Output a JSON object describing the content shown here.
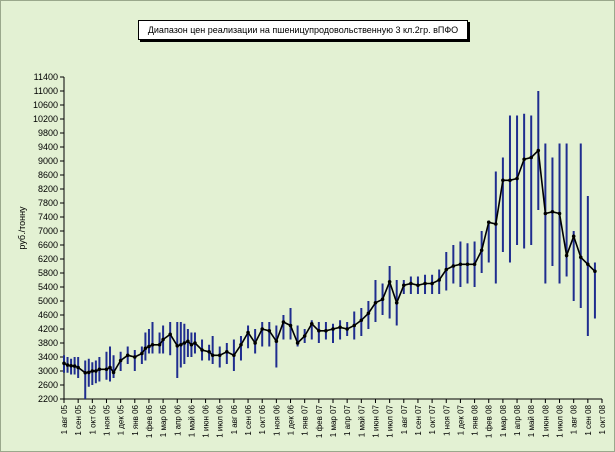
{
  "chart_data": {
    "type": "line",
    "title": "Диапазон цен реализации на пшеницупродовольственную 3 кл.2гр. вПФО",
    "ylabel": "руб./тонну",
    "xlabel": "",
    "ylim": [
      2200,
      11400
    ],
    "y_ticks": [
      2200,
      2600,
      3000,
      3400,
      3800,
      4200,
      4600,
      5000,
      5400,
      5800,
      6200,
      6600,
      7000,
      7400,
      7800,
      8200,
      8600,
      9000,
      9400,
      9800,
      10200,
      10600,
      11000,
      11400
    ],
    "x_tick_labels": [
      "1 авг 05",
      "1 сен 05",
      "1 окт 05",
      "1 ноя 05",
      "1 дек 05",
      "1 янв 06",
      "1 фев 06",
      "1 мар 06",
      "1 апр 06",
      "1 май 06",
      "1 июн 06",
      "1 июл 06",
      "1 авг 06",
      "1 сен 06",
      "1 окт 06",
      "1 ноя 06",
      "1 дек 06",
      "1 янв 07",
      "1 фев 07",
      "1 мар 07",
      "1 апр 07",
      "1 май 07",
      "1 июн 07",
      "1 июл 07",
      "1 авг 07",
      "1 сен 07",
      "1 окт 07",
      "1 ноя 07",
      "1 дек 07",
      "1 янв 08",
      "1 фев 08",
      "1 мар 08",
      "1 апр 08",
      "1 май 08",
      "1 июн 08",
      "1 июл 08",
      "1 авг 08",
      "1 сен 08",
      "1 окт 08"
    ],
    "grid": false,
    "legend": "none",
    "line_color": "#000000",
    "range_color": "#1f2d8f",
    "points": [
      {
        "x": 0.0,
        "y": 3220,
        "low": 2950,
        "high": 3450
      },
      {
        "x": 0.25,
        "y": 3170,
        "low": 2950,
        "high": 3400
      },
      {
        "x": 0.5,
        "y": 3150,
        "low": 2900,
        "high": 3350
      },
      {
        "x": 0.75,
        "y": 3140,
        "low": 2900,
        "high": 3400
      },
      {
        "x": 1.0,
        "y": 3100,
        "low": 2800,
        "high": 3400
      },
      {
        "x": 1.5,
        "y": 2950,
        "low": 2200,
        "high": 3300
      },
      {
        "x": 1.75,
        "y": 2960,
        "low": 2550,
        "high": 3350
      },
      {
        "x": 2.0,
        "y": 3000,
        "low": 2600,
        "high": 3250
      },
      {
        "x": 2.25,
        "y": 3000,
        "low": 2650,
        "high": 3300
      },
      {
        "x": 2.5,
        "y": 3050,
        "low": 2700,
        "high": 3400
      },
      {
        "x": 3.0,
        "y": 3050,
        "low": 2750,
        "high": 3550
      },
      {
        "x": 3.25,
        "y": 3100,
        "low": 2700,
        "high": 3700
      },
      {
        "x": 3.5,
        "y": 2960,
        "low": 2800,
        "high": 3450
      },
      {
        "x": 4.0,
        "y": 3300,
        "low": 3000,
        "high": 3550
      },
      {
        "x": 4.5,
        "y": 3450,
        "low": 3200,
        "high": 3700
      },
      {
        "x": 5.0,
        "y": 3400,
        "low": 3000,
        "high": 3600
      },
      {
        "x": 5.5,
        "y": 3500,
        "low": 3200,
        "high": 3700
      },
      {
        "x": 5.75,
        "y": 3650,
        "low": 3300,
        "high": 4100
      },
      {
        "x": 6.0,
        "y": 3700,
        "low": 3500,
        "high": 4200
      },
      {
        "x": 6.25,
        "y": 3750,
        "low": 3500,
        "high": 4400
      },
      {
        "x": 6.75,
        "y": 3750,
        "low": 3500,
        "high": 4100
      },
      {
        "x": 7.0,
        "y": 3900,
        "low": 3500,
        "high": 4300
      },
      {
        "x": 7.5,
        "y": 4050,
        "low": 3450,
        "high": 4400
      },
      {
        "x": 8.0,
        "y": 3720,
        "low": 2800,
        "high": 4400
      },
      {
        "x": 8.25,
        "y": 3750,
        "low": 3100,
        "high": 4400
      },
      {
        "x": 8.5,
        "y": 3800,
        "low": 3200,
        "high": 4350
      },
      {
        "x": 8.75,
        "y": 3850,
        "low": 3400,
        "high": 4200
      },
      {
        "x": 9.0,
        "y": 3750,
        "low": 3400,
        "high": 4100
      },
      {
        "x": 9.25,
        "y": 3800,
        "low": 3500,
        "high": 4100
      },
      {
        "x": 9.75,
        "y": 3600,
        "low": 3300,
        "high": 3900
      },
      {
        "x": 10.25,
        "y": 3550,
        "low": 3300,
        "high": 3750
      },
      {
        "x": 10.5,
        "y": 3450,
        "low": 3200,
        "high": 4000
      },
      {
        "x": 11.0,
        "y": 3450,
        "low": 3100,
        "high": 3700
      },
      {
        "x": 11.5,
        "y": 3550,
        "low": 3200,
        "high": 3800
      },
      {
        "x": 12.0,
        "y": 3450,
        "low": 3000,
        "high": 3900
      },
      {
        "x": 12.5,
        "y": 3750,
        "low": 3300,
        "high": 4000
      },
      {
        "x": 13.0,
        "y": 4100,
        "low": 3650,
        "high": 4300
      },
      {
        "x": 13.5,
        "y": 3800,
        "low": 3500,
        "high": 4200
      },
      {
        "x": 14.0,
        "y": 4200,
        "low": 3700,
        "high": 4400
      },
      {
        "x": 14.5,
        "y": 4150,
        "low": 3700,
        "high": 4400
      },
      {
        "x": 15.0,
        "y": 3850,
        "low": 3100,
        "high": 4300
      },
      {
        "x": 15.5,
        "y": 4400,
        "low": 3900,
        "high": 4600
      },
      {
        "x": 16.0,
        "y": 4300,
        "low": 3900,
        "high": 4800
      },
      {
        "x": 16.5,
        "y": 3800,
        "low": 3700,
        "high": 4300
      },
      {
        "x": 17.0,
        "y": 4000,
        "low": 3800,
        "high": 4200
      },
      {
        "x": 17.5,
        "y": 4350,
        "low": 3900,
        "high": 4450
      },
      {
        "x": 18.0,
        "y": 4150,
        "low": 3800,
        "high": 4400
      },
      {
        "x": 18.5,
        "y": 4150,
        "low": 3900,
        "high": 4400
      },
      {
        "x": 19.0,
        "y": 4200,
        "low": 3800,
        "high": 4350
      },
      {
        "x": 19.5,
        "y": 4250,
        "low": 3900,
        "high": 4450
      },
      {
        "x": 20.0,
        "y": 4200,
        "low": 4000,
        "high": 4400
      },
      {
        "x": 20.5,
        "y": 4300,
        "low": 3900,
        "high": 4700
      },
      {
        "x": 21.0,
        "y": 4450,
        "low": 4000,
        "high": 4800
      },
      {
        "x": 21.5,
        "y": 4650,
        "low": 4200,
        "high": 5000
      },
      {
        "x": 22.0,
        "y": 4950,
        "low": 4400,
        "high": 5600
      },
      {
        "x": 22.5,
        "y": 5050,
        "low": 4600,
        "high": 5500
      },
      {
        "x": 23.0,
        "y": 5550,
        "low": 4500,
        "high": 6000
      },
      {
        "x": 23.5,
        "y": 4950,
        "low": 4300,
        "high": 5600
      },
      {
        "x": 24.0,
        "y": 5450,
        "low": 5200,
        "high": 5600
      },
      {
        "x": 24.5,
        "y": 5500,
        "low": 5200,
        "high": 5700
      },
      {
        "x": 25.0,
        "y": 5450,
        "low": 5200,
        "high": 5700
      },
      {
        "x": 25.5,
        "y": 5500,
        "low": 5200,
        "high": 5750
      },
      {
        "x": 26.0,
        "y": 5500,
        "low": 5200,
        "high": 5750
      },
      {
        "x": 26.5,
        "y": 5600,
        "low": 5200,
        "high": 5900
      },
      {
        "x": 27.0,
        "y": 5900,
        "low": 5300,
        "high": 6400
      },
      {
        "x": 27.5,
        "y": 6000,
        "low": 5500,
        "high": 6600
      },
      {
        "x": 28.0,
        "y": 6050,
        "low": 5400,
        "high": 6700
      },
      {
        "x": 28.5,
        "y": 6050,
        "low": 5500,
        "high": 6650
      },
      {
        "x": 29.0,
        "y": 6050,
        "low": 5400,
        "high": 6700
      },
      {
        "x": 29.5,
        "y": 6450,
        "low": 5800,
        "high": 7000
      },
      {
        "x": 30.0,
        "y": 7250,
        "low": 6100,
        "high": 7300
      },
      {
        "x": 30.5,
        "y": 7200,
        "low": 5500,
        "high": 8700
      },
      {
        "x": 31.0,
        "y": 8450,
        "low": 6400,
        "high": 9100
      },
      {
        "x": 31.5,
        "y": 8450,
        "low": 6100,
        "high": 10300
      },
      {
        "x": 32.0,
        "y": 8500,
        "low": 6600,
        "high": 10300
      },
      {
        "x": 32.5,
        "y": 9050,
        "low": 6500,
        "high": 10350
      },
      {
        "x": 33.0,
        "y": 9100,
        "low": 6600,
        "high": 10300
      },
      {
        "x": 33.5,
        "y": 9300,
        "low": 7600,
        "high": 11000
      },
      {
        "x": 34.0,
        "y": 7500,
        "low": 5500,
        "high": 9500
      },
      {
        "x": 34.5,
        "y": 7550,
        "low": 6000,
        "high": 9100
      },
      {
        "x": 35.0,
        "y": 7500,
        "low": 5500,
        "high": 9500
      },
      {
        "x": 35.5,
        "y": 6300,
        "low": 5700,
        "high": 9500
      },
      {
        "x": 36.0,
        "y": 6850,
        "low": 5000,
        "high": 7000
      },
      {
        "x": 36.5,
        "y": 6250,
        "low": 4800,
        "high": 9500
      },
      {
        "x": 37.0,
        "y": 6050,
        "low": 4000,
        "high": 8000
      },
      {
        "x": 37.5,
        "y": 5850,
        "low": 4500,
        "high": 6100
      }
    ]
  }
}
